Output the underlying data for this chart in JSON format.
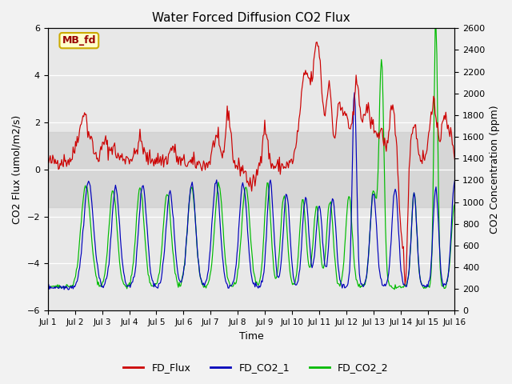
{
  "title": "Water Forced Diffusion CO2 Flux",
  "ylabel_left": "CO2 Flux (umol/m2/s)",
  "ylabel_right": "CO2 Concentration (ppm)",
  "xlabel": "Time",
  "ylim_left": [
    -6,
    6
  ],
  "ylim_right": [
    0,
    2600
  ],
  "yticks_left": [
    -6,
    -4,
    -2,
    0,
    2,
    4,
    6
  ],
  "yticks_right": [
    0,
    200,
    400,
    600,
    800,
    1000,
    1200,
    1400,
    1600,
    1800,
    2000,
    2200,
    2400,
    2600
  ],
  "shaded_band_lo": -1.6,
  "shaded_band_hi": 1.6,
  "band_color": "#d0d0d0",
  "fig_bg_color": "#f2f2f2",
  "plot_bg_color": "#e8e8e8",
  "flux_color": "#cc0000",
  "co2_1_color": "#0000bb",
  "co2_2_color": "#00bb00",
  "label_box_text": "MB_fd",
  "label_box_bg": "#ffffcc",
  "label_box_border": "#ccaa00",
  "label_box_text_color": "#990000",
  "legend_labels": [
    "FD_Flux",
    "FD_CO2_1",
    "FD_CO2_2"
  ],
  "days": 15,
  "n_points": 500
}
